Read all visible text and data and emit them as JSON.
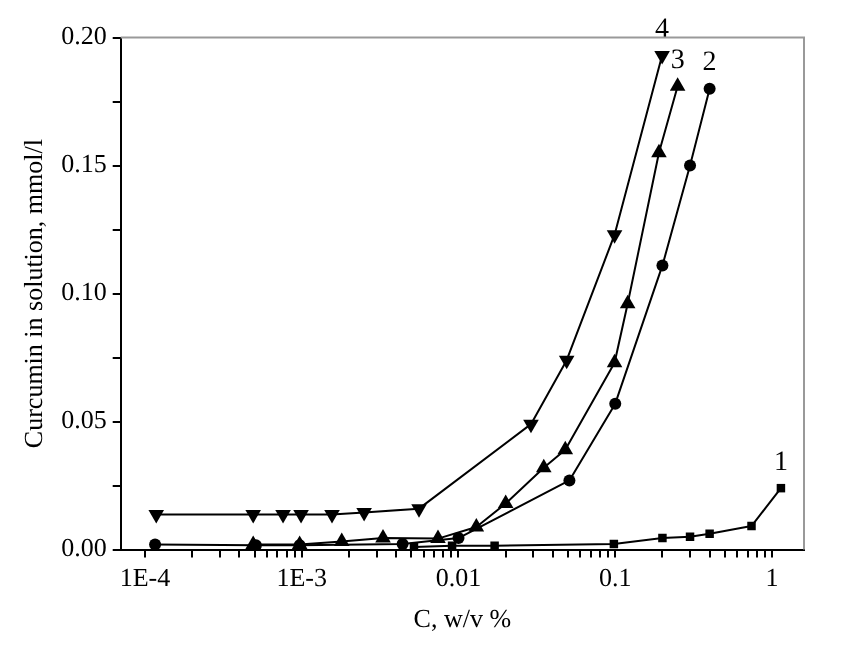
{
  "chart_data": {
    "type": "line",
    "xlabel": "C, w/v %",
    "ylabel": "Curcumin in solution, mmol/l",
    "log": "x",
    "grid": false,
    "legend": false,
    "xlim": [
      7e-05,
      1.6
    ],
    "ylim": [
      0,
      0.2
    ],
    "xticks": [
      {
        "value": 0.0001,
        "label": "1E-4"
      },
      {
        "value": 0.0002,
        "label": null
      },
      {
        "value": 0.0003,
        "label": null
      },
      {
        "value": 0.0004,
        "label": null
      },
      {
        "value": 0.0005,
        "label": null
      },
      {
        "value": 0.0006,
        "label": null
      },
      {
        "value": 0.0007,
        "label": null
      },
      {
        "value": 0.0008,
        "label": null
      },
      {
        "value": 0.0009,
        "label": null
      },
      {
        "value": 0.001,
        "label": "1E-3"
      },
      {
        "value": 0.002,
        "label": null
      },
      {
        "value": 0.003,
        "label": null
      },
      {
        "value": 0.004,
        "label": null
      },
      {
        "value": 0.005,
        "label": null
      },
      {
        "value": 0.006,
        "label": null
      },
      {
        "value": 0.007,
        "label": null
      },
      {
        "value": 0.008,
        "label": null
      },
      {
        "value": 0.009,
        "label": null
      },
      0.01,
      {
        "value": 0.02,
        "label": null
      },
      {
        "value": 0.03,
        "label": null
      },
      {
        "value": 0.04,
        "label": null
      },
      {
        "value": 0.05,
        "label": null
      },
      {
        "value": 0.06,
        "label": null
      },
      {
        "value": 0.07,
        "label": null
      },
      {
        "value": 0.08,
        "label": null
      },
      {
        "value": 0.09,
        "label": null
      },
      0.1,
      {
        "value": 0.2,
        "label": null
      },
      {
        "value": 0.3,
        "label": null
      },
      {
        "value": 0.4,
        "label": null
      },
      {
        "value": 0.5,
        "label": null
      },
      {
        "value": 0.6,
        "label": null
      },
      {
        "value": 0.7,
        "label": null
      },
      {
        "value": 0.8,
        "label": null
      },
      {
        "value": 0.9,
        "label": null
      },
      1
    ],
    "yticks": [
      {
        "value": 0,
        "label": "0.00"
      },
      {
        "value": 0.025,
        "label": null
      },
      {
        "value": 0.05,
        "label": "0.05"
      },
      {
        "value": 0.075,
        "label": null
      },
      {
        "value": 0.1,
        "label": "0.10"
      },
      {
        "value": 0.125,
        "label": null
      },
      {
        "value": 0.15,
        "label": "0.15"
      },
      {
        "value": 0.175,
        "label": null
      },
      {
        "value": 0.2,
        "label": "0.20"
      }
    ],
    "series": [
      {
        "name": "1",
        "color": "#000000",
        "marker": "square",
        "x": [
          0.0052,
          0.0091,
          0.017,
          0.098,
          0.2,
          0.3,
          0.4,
          0.74,
          1.14
        ],
        "values": [
          0.001,
          0.0015,
          0.0015,
          0.0022,
          0.0045,
          0.005,
          0.0062,
          0.0092,
          0.024
        ]
      },
      {
        "name": "2",
        "color": "#000000",
        "marker": "circle",
        "x": [
          0.000116,
          0.00051,
          0.00097,
          0.0044,
          0.01,
          0.051,
          0.1,
          0.2,
          0.3,
          0.4
        ],
        "values": [
          0.002,
          0.0017,
          0.0017,
          0.0022,
          0.0045,
          0.027,
          0.057,
          0.111,
          0.15,
          0.18
        ]
      },
      {
        "name": "3",
        "color": "#000000",
        "marker": "triangle",
        "x": [
          0.00049,
          0.00097,
          0.0018,
          0.0033,
          0.0074,
          0.013,
          0.02,
          0.035,
          0.048,
          0.099,
          0.12,
          0.19,
          0.25
        ],
        "values": [
          0.002,
          0.002,
          0.0032,
          0.0045,
          0.0043,
          0.0088,
          0.018,
          0.032,
          0.039,
          0.073,
          0.096,
          0.155,
          0.181
        ]
      },
      {
        "name": "4",
        "color": "#000000",
        "marker": "triangle-down",
        "x": [
          0.000118,
          0.00049,
          0.00076,
          0.00099,
          0.00156,
          0.0025,
          0.0056,
          0.029,
          0.049,
          0.099,
          0.199
        ],
        "values": [
          0.0137,
          0.0137,
          0.0137,
          0.0137,
          0.0137,
          0.0145,
          0.016,
          0.049,
          0.074,
          0.123,
          0.193
        ]
      }
    ]
  }
}
